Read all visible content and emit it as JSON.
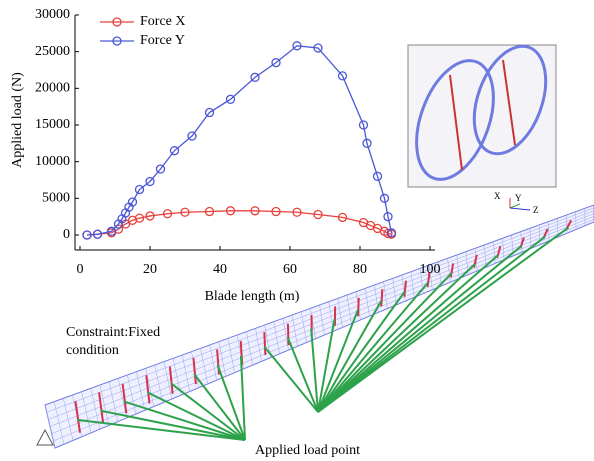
{
  "chart_data": {
    "type": "line",
    "x_label": "Blade length (m)",
    "y_label": "Applied load (N)",
    "xlim": [
      0,
      100
    ],
    "xticks": [
      0,
      20,
      40,
      60,
      80,
      100
    ],
    "ylim": [
      0,
      30000
    ],
    "yticks": [
      0,
      5000,
      10000,
      15000,
      20000,
      25000,
      30000
    ],
    "legend": "upper left",
    "series": [
      {
        "name": "Force X",
        "color": "#e8413c",
        "x": [
          2,
          5,
          9,
          11,
          13,
          15,
          17,
          20,
          25,
          30,
          37,
          43,
          50,
          56,
          62,
          68,
          75,
          81,
          83,
          85,
          87,
          88,
          89
        ],
        "values": [
          0,
          100,
          300,
          800,
          1500,
          2000,
          2300,
          2600,
          2900,
          3100,
          3200,
          3300,
          3300,
          3200,
          3100,
          2800,
          2400,
          1700,
          1300,
          900,
          500,
          200,
          100
        ]
      },
      {
        "name": "Force Y",
        "color": "#4a57d6",
        "x": [
          2,
          5,
          9,
          11,
          12,
          13,
          14,
          15,
          17,
          20,
          23,
          27,
          32,
          37,
          43,
          50,
          56,
          62,
          68,
          75,
          81,
          82,
          85,
          87,
          88,
          89
        ],
        "values": [
          0,
          100,
          500,
          1500,
          2200,
          3000,
          3800,
          4500,
          6200,
          7300,
          9000,
          11500,
          13500,
          16700,
          18500,
          21500,
          23500,
          25800,
          25500,
          21700,
          15000,
          12500,
          8000,
          5000,
          2500,
          300
        ]
      }
    ],
    "annotations": [
      "Constraint:Fixed condition",
      "Applied load point",
      "X",
      "Y",
      "Z"
    ]
  }
}
